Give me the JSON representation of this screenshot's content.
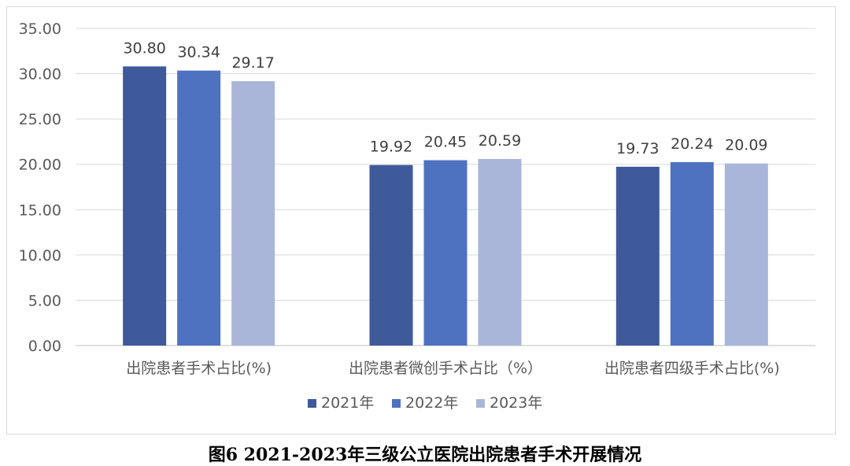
{
  "caption": "图6  2021-2023年三级公立医院出院患者手术开展情况",
  "colors": {
    "2021年": "#3e5a9b",
    "2022年": "#4f72c0",
    "2023年": "#a9b6d9",
    "grid": "#d9d9d9",
    "axis": "#bfbfbf"
  },
  "chart_data": {
    "type": "bar",
    "title": "",
    "xlabel": "",
    "ylabel": "",
    "ylim": [
      0,
      35
    ],
    "yticks": [
      "0.00",
      "5.00",
      "10.00",
      "15.00",
      "20.00",
      "25.00",
      "30.00",
      "35.00"
    ],
    "grid": true,
    "legend_position": "bottom",
    "categories": [
      "出院患者手术占比(%)",
      "出院患者微创手术占比（%）",
      "出院患者四级手术占比(%)"
    ],
    "series": [
      {
        "name": "2021年",
        "values": [
          30.8,
          19.92,
          19.73
        ],
        "labels": [
          "30.80",
          "19.92",
          "19.73"
        ]
      },
      {
        "name": "2022年",
        "values": [
          30.34,
          20.45,
          20.24
        ],
        "labels": [
          "30.34",
          "20.45",
          "20.24"
        ]
      },
      {
        "name": "2023年",
        "values": [
          29.17,
          20.59,
          20.09
        ],
        "labels": [
          "29.17",
          "20.59",
          "20.09"
        ]
      }
    ]
  }
}
